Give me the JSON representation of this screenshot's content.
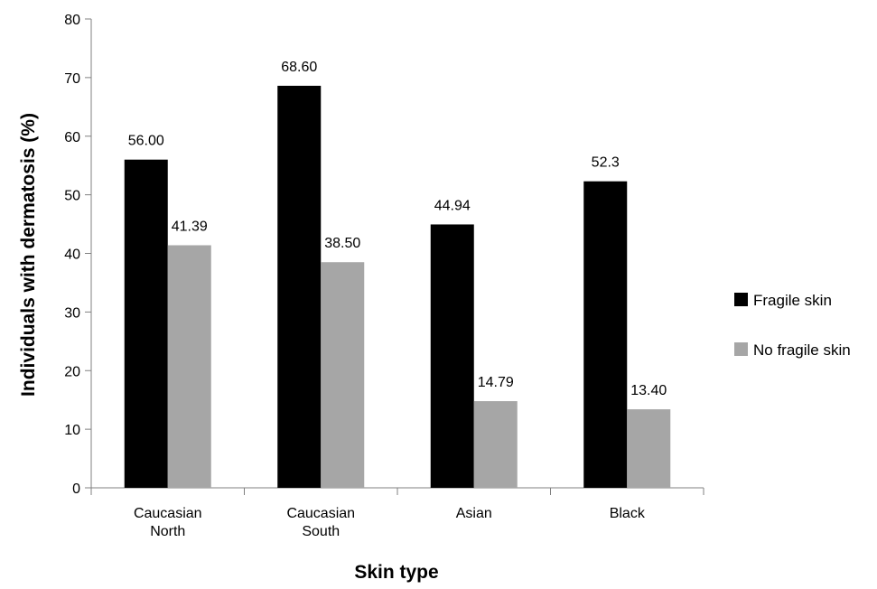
{
  "chart_data": {
    "type": "bar",
    "xlabel": "Skin type",
    "ylabel": "Individuals with dermatosis (%)",
    "ylim": [
      0,
      80
    ],
    "yticks": [
      "0",
      "10",
      "20",
      "30",
      "40",
      "50",
      "60",
      "70",
      "80"
    ],
    "categories": [
      [
        "Caucasian",
        "North"
      ],
      [
        "Caucasian",
        "South"
      ],
      [
        "Asian"
      ],
      [
        "Black"
      ]
    ],
    "series": [
      {
        "name": "Fragile skin",
        "color": "#000000",
        "values": [
          56.0,
          68.6,
          44.94,
          52.3
        ],
        "labels": [
          "56.00",
          "68.60",
          "44.94",
          "52.3"
        ]
      },
      {
        "name": "No fragile skin",
        "color": "#a6a6a6",
        "values": [
          41.39,
          38.5,
          14.79,
          13.4
        ],
        "labels": [
          "41.39",
          "38.50",
          "14.79",
          "13.40"
        ]
      }
    ],
    "legend_position": "right",
    "grid": false
  }
}
